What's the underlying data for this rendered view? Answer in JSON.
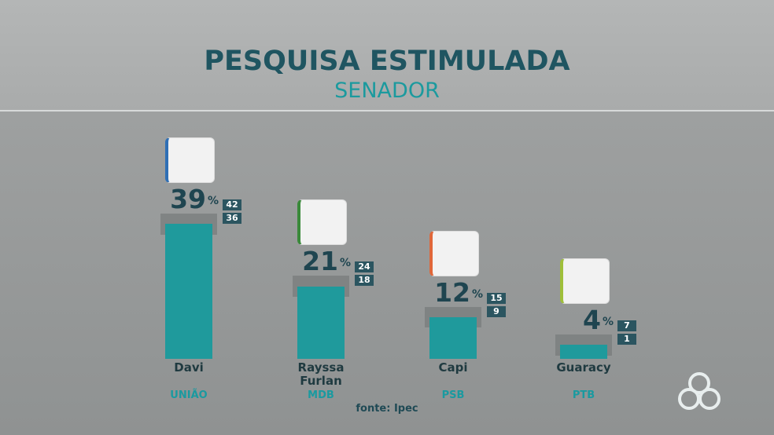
{
  "chart_data": {
    "type": "bar",
    "title": "PESQUISA ESTIMULADA",
    "subtitle": "SENADOR",
    "categories": [
      "Davi",
      "Rayssa Furlan",
      "Capi",
      "Guaracy"
    ],
    "parties": [
      "UNIÃO",
      "MDB",
      "PSB",
      "PTB"
    ],
    "values": [
      39,
      21,
      12,
      4
    ],
    "upper": [
      42,
      24,
      15,
      7
    ],
    "lower": [
      36,
      18,
      9,
      1
    ],
    "unit": "%",
    "color": "#1f9a9c",
    "source": "fonte: Ipec"
  }
}
